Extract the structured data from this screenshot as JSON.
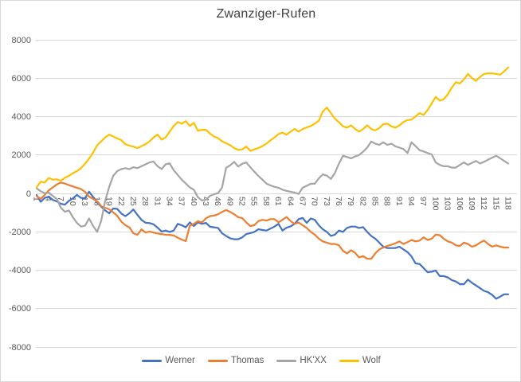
{
  "window": {
    "background": "#ffffff",
    "border_color": "#d9d9d9"
  },
  "title": "Zwanziger-Rufen",
  "styles": {
    "title_color": "#404040",
    "axis_label_color": "#595959",
    "gridline_color": "#d9d9d9",
    "line_width": 2.2
  },
  "chart_data": {
    "type": "line",
    "title": "Zwanziger-Rufen",
    "xlabel": "",
    "ylabel": "",
    "ylim": [
      -8000,
      8000
    ],
    "ytick_step": 2000,
    "grid": true,
    "legend_position": "bottom",
    "x_range": [
      1,
      118
    ],
    "y_ticks": [
      8000,
      6000,
      4000,
      2000,
      0,
      -2000,
      -4000,
      -6000,
      -8000
    ],
    "x_tick_labels": [
      1,
      4,
      7,
      10,
      13,
      16,
      19,
      22,
      25,
      28,
      31,
      34,
      37,
      40,
      43,
      46,
      49,
      52,
      55,
      58,
      61,
      64,
      67,
      70,
      73,
      76,
      79,
      82,
      85,
      88,
      91,
      94,
      97,
      100,
      103,
      106,
      109,
      112,
      115,
      118
    ],
    "series": [
      {
        "name": "Werner",
        "color": "#4472C4",
        "values": [
          -100,
          -450,
          -250,
          -180,
          -350,
          -430,
          -550,
          -600,
          -400,
          -270,
          -90,
          -250,
          -270,
          80,
          -200,
          -490,
          -700,
          -900,
          -1050,
          -800,
          -820,
          -1060,
          -1200,
          -1050,
          -850,
          -1130,
          -1390,
          -1540,
          -1560,
          -1620,
          -1800,
          -2000,
          -1950,
          -2020,
          -1950,
          -1600,
          -1670,
          -1780,
          -1520,
          -1710,
          -1520,
          -1600,
          -1550,
          -1750,
          -1780,
          -1810,
          -2090,
          -2230,
          -2350,
          -2400,
          -2400,
          -2300,
          -2130,
          -2080,
          -2020,
          -1880,
          -1920,
          -1950,
          -1850,
          -1740,
          -1600,
          -1950,
          -1800,
          -1730,
          -1600,
          -1350,
          -1290,
          -1550,
          -1320,
          -1390,
          -1670,
          -1880,
          -2020,
          -2230,
          -2160,
          -1950,
          -2020,
          -1810,
          -1740,
          -1740,
          -1810,
          -1770,
          -2020,
          -2230,
          -2370,
          -2580,
          -2790,
          -2860,
          -2860,
          -2860,
          -2790,
          -2930,
          -3070,
          -3300,
          -3660,
          -3690,
          -3900,
          -4120,
          -4090,
          -4030,
          -4320,
          -4320,
          -4390,
          -4530,
          -4600,
          -4740,
          -4740,
          -4500,
          -4670,
          -4810,
          -4950,
          -5090,
          -5160,
          -5300,
          -5500,
          -5390,
          -5270,
          -5270
        ]
      },
      {
        "name": "Thomas",
        "color": "#ED7D31",
        "values": [
          -150,
          -300,
          -100,
          150,
          300,
          450,
          550,
          500,
          420,
          350,
          280,
          210,
          70,
          -180,
          -300,
          -420,
          -680,
          -760,
          -840,
          -1000,
          -1180,
          -1480,
          -1670,
          -1780,
          -2090,
          -2170,
          -1880,
          -2050,
          -2000,
          -2050,
          -2100,
          -2130,
          -2170,
          -2170,
          -2200,
          -2320,
          -2420,
          -2500,
          -1700,
          -1600,
          -1460,
          -1520,
          -1310,
          -1200,
          -1170,
          -1100,
          -980,
          -880,
          -980,
          -1100,
          -1250,
          -1300,
          -1520,
          -1710,
          -1670,
          -1460,
          -1390,
          -1430,
          -1350,
          -1350,
          -1520,
          -1390,
          -1240,
          -1460,
          -1600,
          -1530,
          -1670,
          -1810,
          -2020,
          -2160,
          -2370,
          -2510,
          -2580,
          -2650,
          -2650,
          -2720,
          -3000,
          -3140,
          -2970,
          -3110,
          -3350,
          -3280,
          -3420,
          -3420,
          -3140,
          -2930,
          -2830,
          -2750,
          -2690,
          -2610,
          -2510,
          -2650,
          -2550,
          -2440,
          -2510,
          -2470,
          -2300,
          -2440,
          -2370,
          -2160,
          -2190,
          -2370,
          -2510,
          -2580,
          -2720,
          -2750,
          -2580,
          -2650,
          -2790,
          -2720,
          -2580,
          -2470,
          -2650,
          -2790,
          -2720,
          -2790,
          -2830,
          -2830
        ]
      },
      {
        "name": "HK'XX",
        "color": "#A5A5A5",
        "values": [
          250,
          100,
          0,
          30,
          -140,
          -300,
          -760,
          -970,
          -900,
          -1250,
          -1550,
          -1740,
          -1700,
          -1320,
          -1700,
          -2020,
          -1450,
          -400,
          330,
          900,
          1150,
          1250,
          1300,
          1250,
          1350,
          1300,
          1400,
          1500,
          1600,
          1650,
          1400,
          1250,
          1500,
          1550,
          1200,
          950,
          700,
          500,
          300,
          180,
          -210,
          -380,
          -350,
          -140,
          -60,
          0,
          300,
          1320,
          1450,
          1630,
          1390,
          1530,
          1600,
          1350,
          1120,
          900,
          700,
          500,
          400,
          330,
          280,
          180,
          120,
          70,
          30,
          -40,
          280,
          380,
          490,
          490,
          770,
          980,
          910,
          740,
          1050,
          1540,
          1950,
          1880,
          1810,
          1910,
          1990,
          2160,
          2370,
          2690,
          2580,
          2510,
          2650,
          2510,
          2580,
          2440,
          2370,
          2300,
          2090,
          2650,
          2450,
          2240,
          2170,
          2090,
          2020,
          1600,
          1470,
          1400,
          1400,
          1330,
          1330,
          1470,
          1600,
          1470,
          1580,
          1680,
          1540,
          1630,
          1740,
          1850,
          1950,
          1810,
          1680,
          1540
        ]
      },
      {
        "name": "Wolf",
        "color": "#FFC000",
        "values": [
          300,
          600,
          550,
          790,
          700,
          720,
          650,
          800,
          900,
          1040,
          1150,
          1300,
          1530,
          1800,
          2100,
          2490,
          2700,
          2900,
          3050,
          2950,
          2850,
          2760,
          2550,
          2480,
          2420,
          2350,
          2450,
          2550,
          2700,
          2900,
          3050,
          2790,
          2900,
          3200,
          3500,
          3700,
          3620,
          3750,
          3500,
          3660,
          3250,
          3300,
          3300,
          3100,
          2950,
          2870,
          2700,
          2600,
          2500,
          2350,
          2250,
          2280,
          2430,
          2200,
          2280,
          2350,
          2450,
          2580,
          2750,
          2900,
          3080,
          3150,
          3050,
          3200,
          3350,
          3200,
          3340,
          3420,
          3500,
          3620,
          3770,
          4250,
          4460,
          4170,
          3880,
          3690,
          3480,
          3410,
          3530,
          3340,
          3200,
          3340,
          3530,
          3340,
          3270,
          3390,
          3590,
          3620,
          3480,
          3410,
          3530,
          3700,
          3810,
          3830,
          4000,
          4170,
          4070,
          4330,
          4670,
          5010,
          4820,
          4890,
          5150,
          5500,
          5780,
          5710,
          5920,
          6210,
          5990,
          5850,
          6060,
          6210,
          6240,
          6240,
          6210,
          6170,
          6340,
          6550
        ]
      }
    ]
  },
  "legend": {
    "items": [
      {
        "label": "Werner",
        "color": "#4472C4"
      },
      {
        "label": "Thomas",
        "color": "#ED7D31"
      },
      {
        "label": "HK'XX",
        "color": "#A5A5A5"
      },
      {
        "label": "Wolf",
        "color": "#FFC000"
      }
    ]
  }
}
